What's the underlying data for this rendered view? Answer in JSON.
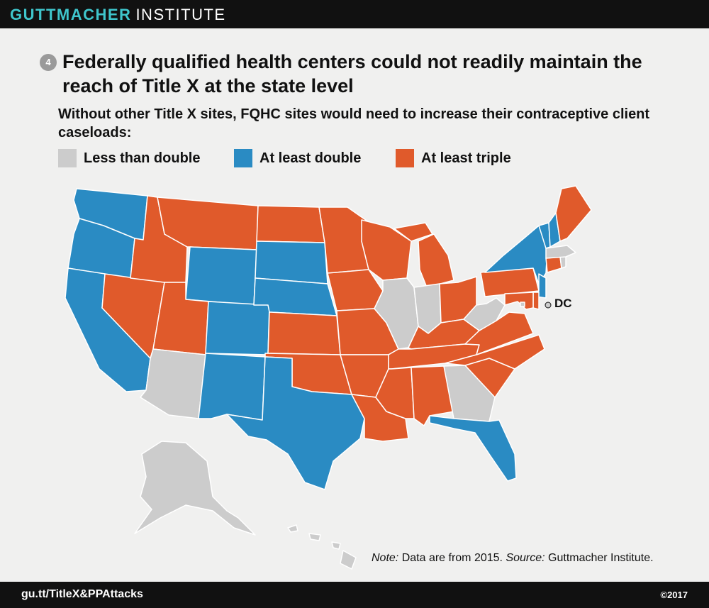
{
  "header": {
    "brand_main": "GUTTMACHER",
    "brand_sub": "INSTITUTE"
  },
  "figure": {
    "number": "4",
    "title": "Federally qualified health centers could not readily maintain the reach of Title X at the state level",
    "subtitle": "Without other Title X sites, FQHC sites would need to increase their contraceptive client caseloads:"
  },
  "legend": [
    {
      "key": "less",
      "label": "Less than double",
      "color": "#cccccc"
    },
    {
      "key": "double",
      "label": "At least double",
      "color": "#2a8bc3"
    },
    {
      "key": "triple",
      "label": "At least triple",
      "color": "#e05a2b"
    }
  ],
  "map": {
    "dc_label": "DC",
    "states": [
      {
        "name": "Washington",
        "category": "double"
      },
      {
        "name": "Oregon",
        "category": "double"
      },
      {
        "name": "California",
        "category": "double"
      },
      {
        "name": "Nevada",
        "category": "triple"
      },
      {
        "name": "Idaho",
        "category": "triple"
      },
      {
        "name": "Montana",
        "category": "triple"
      },
      {
        "name": "Wyoming",
        "category": "double"
      },
      {
        "name": "Utah",
        "category": "triple"
      },
      {
        "name": "Arizona",
        "category": "less"
      },
      {
        "name": "Colorado",
        "category": "double"
      },
      {
        "name": "New Mexico",
        "category": "double"
      },
      {
        "name": "North Dakota",
        "category": "triple"
      },
      {
        "name": "South Dakota",
        "category": "double"
      },
      {
        "name": "Nebraska",
        "category": "double"
      },
      {
        "name": "Kansas",
        "category": "triple"
      },
      {
        "name": "Oklahoma",
        "category": "triple"
      },
      {
        "name": "Texas",
        "category": "double"
      },
      {
        "name": "Minnesota",
        "category": "triple"
      },
      {
        "name": "Iowa",
        "category": "triple"
      },
      {
        "name": "Missouri",
        "category": "triple"
      },
      {
        "name": "Arkansas",
        "category": "triple"
      },
      {
        "name": "Louisiana",
        "category": "triple"
      },
      {
        "name": "Wisconsin",
        "category": "triple"
      },
      {
        "name": "Illinois",
        "category": "less"
      },
      {
        "name": "Michigan",
        "category": "triple"
      },
      {
        "name": "Indiana",
        "category": "less"
      },
      {
        "name": "Ohio",
        "category": "triple"
      },
      {
        "name": "Kentucky",
        "category": "triple"
      },
      {
        "name": "Tennessee",
        "category": "triple"
      },
      {
        "name": "Mississippi",
        "category": "triple"
      },
      {
        "name": "Alabama",
        "category": "triple"
      },
      {
        "name": "Georgia",
        "category": "less"
      },
      {
        "name": "Florida",
        "category": "double"
      },
      {
        "name": "South Carolina",
        "category": "triple"
      },
      {
        "name": "North Carolina",
        "category": "triple"
      },
      {
        "name": "Virginia",
        "category": "triple"
      },
      {
        "name": "West Virginia",
        "category": "less"
      },
      {
        "name": "Pennsylvania",
        "category": "triple"
      },
      {
        "name": "New York",
        "category": "double"
      },
      {
        "name": "New Jersey",
        "category": "double"
      },
      {
        "name": "Delaware",
        "category": "triple"
      },
      {
        "name": "Maryland",
        "category": "triple"
      },
      {
        "name": "District of Columbia",
        "category": "less"
      },
      {
        "name": "Connecticut",
        "category": "triple"
      },
      {
        "name": "Rhode Island",
        "category": "less"
      },
      {
        "name": "Massachusetts",
        "category": "less"
      },
      {
        "name": "Vermont",
        "category": "double"
      },
      {
        "name": "New Hampshire",
        "category": "double"
      },
      {
        "name": "Maine",
        "category": "triple"
      },
      {
        "name": "Alaska",
        "category": "less"
      },
      {
        "name": "Hawaii",
        "category": "less"
      }
    ]
  },
  "note": {
    "note_label": "Note:",
    "note_text": " Data are from 2015. ",
    "source_label": "Source:",
    "source_text": " Guttmacher Institute."
  },
  "footer": {
    "url": "gu.tt/TitleX&PPAttacks",
    "copyright": "©2017"
  }
}
